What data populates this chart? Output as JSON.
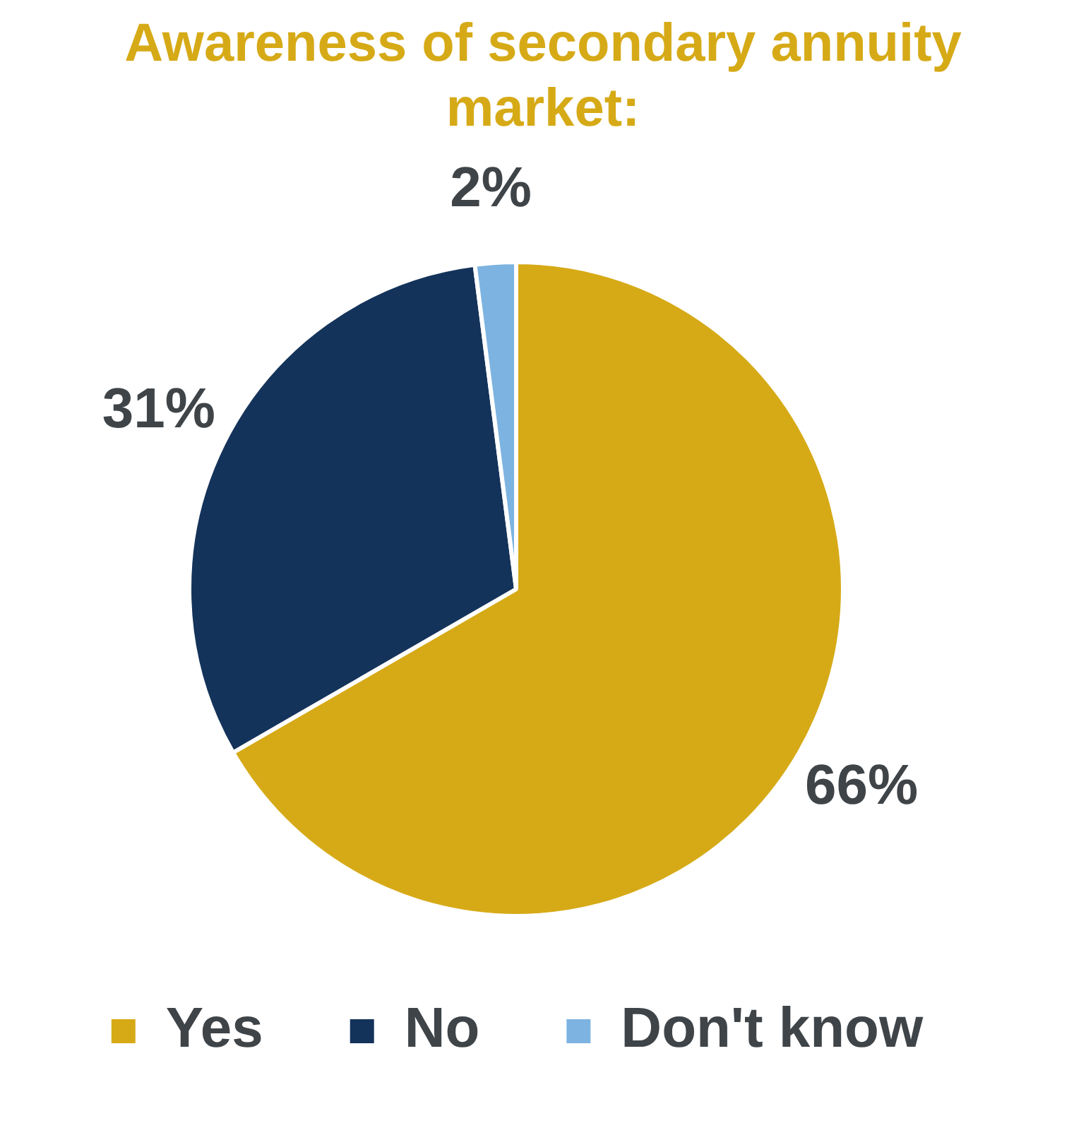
{
  "chart_data": {
    "type": "pie",
    "title": "Awareness of secondary annuity market:",
    "categories": [
      "Yes",
      "No",
      "Don't know"
    ],
    "values": [
      66,
      31,
      2
    ],
    "colors": [
      "#d6aa17",
      "#14335a",
      "#7db3e0"
    ],
    "value_labels": [
      "66%",
      "31%",
      "2%"
    ],
    "legend": "bottom"
  }
}
